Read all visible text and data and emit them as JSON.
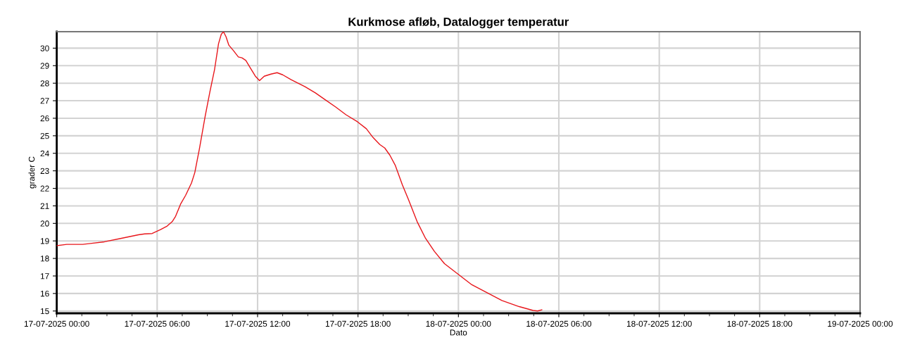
{
  "chart_data": {
    "type": "line",
    "title": "Kurkmose afløb, Datalogger temperatur",
    "xlabel": "Dato",
    "ylabel": "grader C",
    "x": [
      "2025-07-17T00:00",
      "2025-07-17T00:36",
      "2025-07-17T01:33",
      "2025-07-17T02:00",
      "2025-07-17T02:51",
      "2025-07-17T03:52",
      "2025-07-17T04:53",
      "2025-07-17T05:15",
      "2025-07-17T05:42",
      "2025-07-17T06:12",
      "2025-07-17T06:36",
      "2025-07-17T06:54",
      "2025-07-17T07:06",
      "2025-07-17T07:24",
      "2025-07-17T07:42",
      "2025-07-17T08:03",
      "2025-07-17T08:15",
      "2025-07-17T08:32",
      "2025-07-17T08:52",
      "2025-07-17T09:09",
      "2025-07-17T09:26",
      "2025-07-17T09:40",
      "2025-07-17T09:50",
      "2025-07-17T09:58",
      "2025-07-17T10:07",
      "2025-07-17T10:17",
      "2025-07-17T10:34",
      "2025-07-17T10:51",
      "2025-07-17T11:04",
      "2025-07-17T11:18",
      "2025-07-17T11:35",
      "2025-07-17T11:52",
      "2025-07-17T12:07",
      "2025-07-17T12:24",
      "2025-07-17T12:48",
      "2025-07-17T13:10",
      "2025-07-17T13:30",
      "2025-07-17T14:00",
      "2025-07-17T14:50",
      "2025-07-17T15:27",
      "2025-07-17T16:04",
      "2025-07-17T16:40",
      "2025-07-17T17:17",
      "2025-07-17T17:58",
      "2025-07-17T18:30",
      "2025-07-17T18:54",
      "2025-07-17T19:18",
      "2025-07-17T19:36",
      "2025-07-17T19:54",
      "2025-07-17T20:14",
      "2025-07-17T20:39",
      "2025-07-17T21:00",
      "2025-07-17T21:32",
      "2025-07-17T22:02",
      "2025-07-17T22:34",
      "2025-07-17T23:10",
      "2025-07-17T23:59",
      "2025-07-18T00:48",
      "2025-07-18T01:36",
      "2025-07-18T02:36",
      "2025-07-18T03:38",
      "2025-07-18T04:28",
      "2025-07-18T04:44",
      "2025-07-18T04:59"
    ],
    "series": [
      {
        "color": "#e8161b",
        "values": [
          18.73,
          18.8,
          18.8,
          18.85,
          18.95,
          19.15,
          19.35,
          19.4,
          19.42,
          19.65,
          19.85,
          20.1,
          20.4,
          21.1,
          21.6,
          22.3,
          22.9,
          24.3,
          26.1,
          27.5,
          28.8,
          30.25,
          30.8,
          30.93,
          30.65,
          30.17,
          29.85,
          29.5,
          29.45,
          29.3,
          28.85,
          28.4,
          28.15,
          28.4,
          28.52,
          28.6,
          28.48,
          28.2,
          27.8,
          27.45,
          27.04,
          26.64,
          26.2,
          25.8,
          25.4,
          24.9,
          24.5,
          24.3,
          23.9,
          23.3,
          22.2,
          21.4,
          20.1,
          19.15,
          18.4,
          17.7,
          17.1,
          16.5,
          16.1,
          15.6,
          15.25,
          15.03,
          15.0,
          15.07
        ]
      }
    ],
    "xlim": [
      "2025-07-17T00:00",
      "2025-07-19T00:00"
    ],
    "xticks": [
      {
        "value": "2025-07-17T00:00",
        "label": "17-07-2025 00:00"
      },
      {
        "value": "2025-07-17T01:30",
        "label": null
      },
      {
        "value": "2025-07-17T03:00",
        "label": null
      },
      {
        "value": "2025-07-17T04:30",
        "label": null
      },
      {
        "value": "2025-07-17T06:00",
        "label": "17-07-2025 06:00"
      },
      {
        "value": "2025-07-17T07:30",
        "label": null
      },
      {
        "value": "2025-07-17T09:00",
        "label": null
      },
      {
        "value": "2025-07-17T10:30",
        "label": null
      },
      {
        "value": "2025-07-17T12:00",
        "label": "17-07-2025 12:00"
      },
      {
        "value": "2025-07-17T13:30",
        "label": null
      },
      {
        "value": "2025-07-17T15:00",
        "label": null
      },
      {
        "value": "2025-07-17T16:30",
        "label": null
      },
      {
        "value": "2025-07-17T18:00",
        "label": "17-07-2025 18:00"
      },
      {
        "value": "2025-07-17T19:30",
        "label": null
      },
      {
        "value": "2025-07-17T21:00",
        "label": null
      },
      {
        "value": "2025-07-17T22:30",
        "label": null
      },
      {
        "value": "2025-07-18T00:00",
        "label": "18-07-2025 00:00"
      },
      {
        "value": "2025-07-18T01:30",
        "label": null
      },
      {
        "value": "2025-07-18T03:00",
        "label": null
      },
      {
        "value": "2025-07-18T04:30",
        "label": null
      },
      {
        "value": "2025-07-18T06:00",
        "label": "18-07-2025 06:00"
      },
      {
        "value": "2025-07-18T07:30",
        "label": null
      },
      {
        "value": "2025-07-18T09:00",
        "label": null
      },
      {
        "value": "2025-07-18T10:30",
        "label": null
      },
      {
        "value": "2025-07-18T12:00",
        "label": "18-07-2025 12:00"
      },
      {
        "value": "2025-07-18T13:30",
        "label": null
      },
      {
        "value": "2025-07-18T15:00",
        "label": null
      },
      {
        "value": "2025-07-18T16:30",
        "label": null
      },
      {
        "value": "2025-07-18T18:00",
        "label": "18-07-2025 18:00"
      },
      {
        "value": "2025-07-18T19:30",
        "label": null
      },
      {
        "value": "2025-07-18T21:00",
        "label": null
      },
      {
        "value": "2025-07-18T22:30",
        "label": null
      },
      {
        "value": "2025-07-19T00:00",
        "label": "19-07-2025 00:00"
      }
    ],
    "ylim": [
      14.87,
      30.94
    ],
    "yticks": [
      15,
      16,
      17,
      18,
      19,
      20,
      21,
      22,
      23,
      24,
      25,
      26,
      27,
      28,
      29,
      30
    ],
    "grid": true,
    "legend": false,
    "marker": "none",
    "line_style": "solid"
  }
}
